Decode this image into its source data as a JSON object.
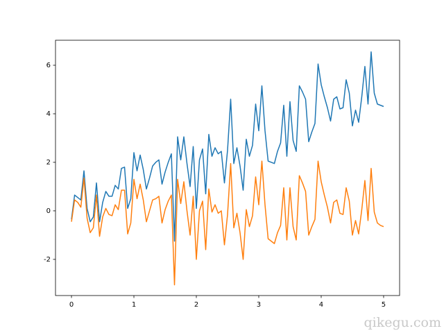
{
  "chart_data": {
    "type": "line",
    "x": [
      0,
      0.05,
      0.1,
      0.15,
      0.2,
      0.25,
      0.3,
      0.35,
      0.4,
      0.45,
      0.5,
      0.55,
      0.6,
      0.65,
      0.7,
      0.75,
      0.8,
      0.85,
      0.9,
      0.95,
      1,
      1.05,
      1.1,
      1.15,
      1.2,
      1.25,
      1.3,
      1.35,
      1.4,
      1.45,
      1.5,
      1.55,
      1.6,
      1.65,
      1.7,
      1.75,
      1.8,
      1.85,
      1.9,
      1.95,
      2,
      2.05,
      2.1,
      2.15,
      2.2,
      2.25,
      2.3,
      2.35,
      2.4,
      2.45,
      2.5,
      2.55,
      2.6,
      2.65,
      2.7,
      2.75,
      2.8,
      2.85,
      2.9,
      2.95,
      3,
      3.05,
      3.1,
      3.15,
      3.2,
      3.25,
      3.3,
      3.35,
      3.4,
      3.45,
      3.5,
      3.55,
      3.6,
      3.65,
      3.7,
      3.75,
      3.8,
      3.85,
      3.9,
      3.95,
      4,
      4.05,
      4.1,
      4.15,
      4.2,
      4.25,
      4.3,
      4.35,
      4.4,
      4.45,
      4.5,
      4.55,
      4.6,
      4.65,
      4.7,
      4.75,
      4.8,
      4.85,
      4.9,
      4.95,
      5
    ],
    "series": [
      {
        "color": "#1f77b4",
        "values": [
          -0.35,
          0.65,
          0.55,
          0.45,
          1.65,
          0.1,
          -0.45,
          -0.25,
          1.15,
          -0.45,
          0.35,
          0.8,
          0.6,
          0.6,
          1.05,
          0.9,
          1.75,
          1.8,
          0.1,
          0.5,
          2.4,
          1.65,
          2.3,
          1.7,
          0.9,
          1.35,
          1.85,
          2.0,
          2.1,
          1.1,
          1.6,
          2.0,
          2.35,
          -1.25,
          3.05,
          2.1,
          3.05,
          1.95,
          1.0,
          2.65,
          0.1,
          2.1,
          2.55,
          0.7,
          3.15,
          2.25,
          2.6,
          2.35,
          2.45,
          1.15,
          2.5,
          4.6,
          1.95,
          2.6,
          1.85,
          0.85,
          2.95,
          2.25,
          2.7,
          4.4,
          3.3,
          5.15,
          3.3,
          2.05,
          2.0,
          1.95,
          2.45,
          2.8,
          4.35,
          2.25,
          4.5,
          2.9,
          2.45,
          5.15,
          4.9,
          4.6,
          2.85,
          3.25,
          3.6,
          6.05,
          5.2,
          4.7,
          4.25,
          3.7,
          4.6,
          4.7,
          4.2,
          4.25,
          5.4,
          4.85,
          3.5,
          4.15,
          3.65,
          4.7,
          5.95,
          4.4,
          6.55,
          4.85,
          4.4,
          4.35,
          4.3
        ]
      },
      {
        "color": "#ff7f0e",
        "values": [
          -0.45,
          0.45,
          0.35,
          0.15,
          1.35,
          -0.3,
          -0.9,
          -0.7,
          0.65,
          -1.05,
          -0.25,
          0.1,
          -0.15,
          -0.2,
          0.25,
          0.05,
          0.85,
          0.85,
          -0.95,
          -0.5,
          1.3,
          0.5,
          1.1,
          0.45,
          -0.45,
          0.0,
          0.45,
          0.5,
          0.6,
          -0.5,
          0.05,
          0.4,
          0.65,
          -3.05,
          1.3,
          0.3,
          1.2,
          0.0,
          -1.0,
          0.6,
          -2.0,
          0.0,
          0.4,
          -1.6,
          0.9,
          -0.05,
          0.25,
          -0.1,
          0.0,
          -1.4,
          -0.15,
          1.95,
          -0.7,
          -0.1,
          -0.9,
          -2.0,
          0.05,
          -0.65,
          -0.2,
          1.4,
          0.25,
          2.05,
          0.25,
          -1.15,
          -1.25,
          -1.35,
          -0.9,
          -0.6,
          0.95,
          -1.2,
          0.95,
          -0.65,
          -1.2,
          1.45,
          1.15,
          0.8,
          -1.0,
          -0.65,
          -0.35,
          2.05,
          1.2,
          0.65,
          0.15,
          -0.5,
          0.35,
          0.45,
          -0.1,
          -0.15,
          0.95,
          0.4,
          -1.0,
          -0.4,
          -0.95,
          0.05,
          1.25,
          -0.4,
          1.75,
          -0.05,
          -0.5,
          -0.6,
          -0.65
        ]
      }
    ],
    "xlim": [
      -0.256,
      5.256
    ],
    "ylim": [
      -3.49,
      7.03
    ],
    "xticks": [
      0,
      1,
      2,
      3,
      4,
      5
    ],
    "yticks": [
      -2,
      0,
      2,
      4,
      6
    ],
    "watermark": "qikegu.com"
  }
}
